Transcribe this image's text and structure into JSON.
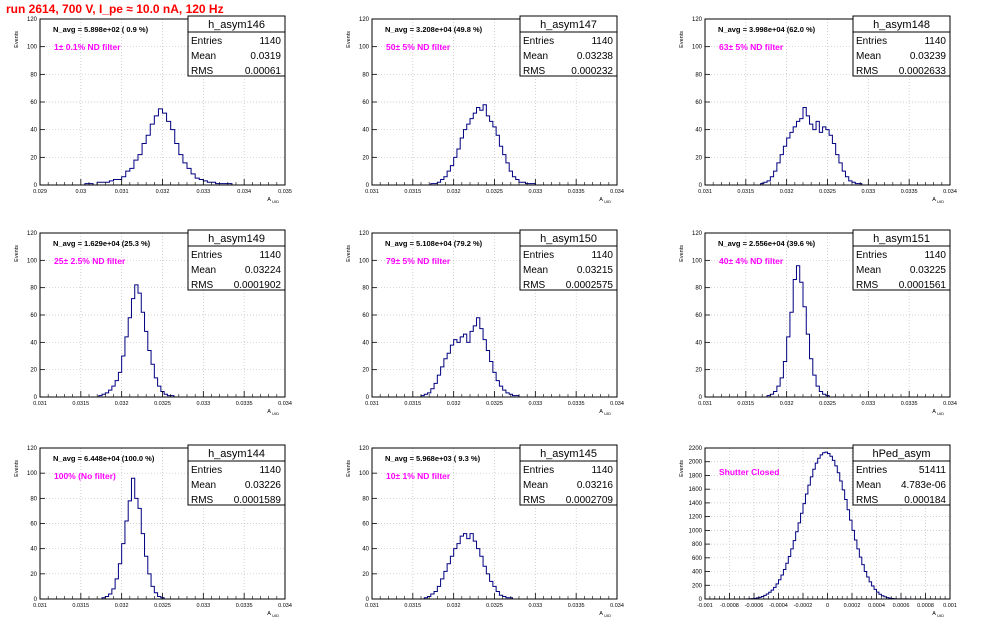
{
  "run_title": "run 2614,   700 V, I_pe ≈ 10.0 nA, 120 Hz",
  "chart_data": [
    {
      "type": "bar",
      "name": "h_asym146",
      "ylabel": "Events",
      "xlabel": "A_UID",
      "xlim": [
        0.029,
        0.035
      ],
      "ylim": [
        0,
        120
      ],
      "xticks": [
        "0.029",
        "0.03",
        "0.031",
        "0.032",
        "0.033",
        "0.034",
        "0.035"
      ],
      "yticks": [
        "0",
        "20",
        "40",
        "60",
        "80",
        "100",
        "120"
      ],
      "stats": {
        "entries": "1140",
        "mean": "0.0319",
        "rms": "0.00061"
      },
      "n_avg": "N_avg = 5.898e+02 ( 0.9 %)",
      "filter": "1± 0.1% ND filter",
      "bins": {
        "x0": 0.0301,
        "width": 0.0001,
        "values": [
          1,
          1,
          0,
          2,
          2,
          2,
          3,
          4,
          4,
          6,
          10,
          12,
          18,
          22,
          30,
          36,
          44,
          50,
          55,
          52,
          46,
          40,
          30,
          22,
          16,
          12,
          8,
          5,
          4,
          3,
          2,
          2,
          1,
          1,
          1,
          1
        ]
      }
    },
    {
      "type": "bar",
      "name": "h_asym147",
      "ylabel": "Events",
      "xlabel": "A_UID",
      "xlim": [
        0.031,
        0.034
      ],
      "ylim": [
        0,
        120
      ],
      "xticks": [
        "0.031",
        "0.0315",
        "0.032",
        "0.0325",
        "0.033",
        "0.0335",
        "0.034"
      ],
      "yticks": [
        "0",
        "20",
        "40",
        "60",
        "80",
        "100",
        "120"
      ],
      "stats": {
        "entries": "1140",
        "mean": "0.03238",
        "rms": "0.000232"
      },
      "n_avg": "N_avg = 3.208e+04 (49.8 %)",
      "filter": "50± 5% ND filter",
      "bins": {
        "x0": 0.03172,
        "width": 4e-05,
        "values": [
          1,
          1,
          2,
          4,
          6,
          10,
          14,
          20,
          26,
          34,
          40,
          44,
          48,
          52,
          56,
          54,
          58,
          50,
          46,
          42,
          36,
          28,
          22,
          16,
          10,
          6,
          4,
          2,
          2,
          1,
          1,
          1
        ]
      }
    },
    {
      "type": "bar",
      "name": "h_asym148",
      "ylabel": "Events",
      "xlabel": "A_UID",
      "xlim": [
        0.031,
        0.034
      ],
      "ylim": [
        0,
        120
      ],
      "xticks": [
        "0.031",
        "0.0315",
        "0.032",
        "0.0325",
        "0.033",
        "0.0335",
        "0.034"
      ],
      "yticks": [
        "0",
        "20",
        "40",
        "60",
        "80",
        "100",
        "120"
      ],
      "stats": {
        "entries": "1140",
        "mean": "0.03239",
        "rms": "0.0002633"
      },
      "n_avg": "N_avg = 3.998e+04 (62.0 %)",
      "filter": "63± 5% ND filter",
      "bins": {
        "x0": 0.03168,
        "width": 4e-05,
        "values": [
          1,
          2,
          3,
          6,
          10,
          16,
          22,
          28,
          34,
          38,
          42,
          46,
          48,
          56,
          50,
          44,
          40,
          46,
          38,
          42,
          40,
          36,
          30,
          22,
          16,
          10,
          6,
          3,
          2,
          1,
          1
        ]
      }
    },
    {
      "type": "bar",
      "name": "h_asym149",
      "ylabel": "Events",
      "xlabel": "A_UID",
      "xlim": [
        0.031,
        0.034
      ],
      "ylim": [
        0,
        120
      ],
      "xticks": [
        "0.031",
        "0.0315",
        "0.032",
        "0.0325",
        "0.033",
        "0.0335",
        "0.034"
      ],
      "yticks": [
        "0",
        "20",
        "40",
        "60",
        "80",
        "100",
        "120"
      ],
      "stats": {
        "entries": "1140",
        "mean": "0.03224",
        "rms": "0.0001902"
      },
      "n_avg": "N_avg = 1.629e+04 (25.3 %)",
      "filter": "25± 2.5% ND filter",
      "bins": {
        "x0": 0.03172,
        "width": 4e-05,
        "values": [
          1,
          2,
          3,
          5,
          8,
          12,
          18,
          30,
          44,
          58,
          72,
          82,
          76,
          62,
          48,
          34,
          24,
          14,
          8,
          4,
          2,
          1,
          1
        ]
      }
    },
    {
      "type": "bar",
      "name": "h_asym150",
      "ylabel": "Events",
      "xlabel": "A_UID",
      "xlim": [
        0.031,
        0.034
      ],
      "ylim": [
        0,
        120
      ],
      "xticks": [
        "0.031",
        "0.0315",
        "0.032",
        "0.0325",
        "0.033",
        "0.0335",
        "0.034"
      ],
      "yticks": [
        "0",
        "20",
        "40",
        "60",
        "80",
        "100",
        "120"
      ],
      "stats": {
        "entries": "1140",
        "mean": "0.03215",
        "rms": "0.0002575"
      },
      "n_avg": "N_avg = 5.108e+04 (79.2 %)",
      "filter": "79± 5% ND filter",
      "bins": {
        "x0": 0.0316,
        "width": 4e-05,
        "values": [
          1,
          2,
          3,
          6,
          10,
          16,
          22,
          28,
          32,
          38,
          42,
          40,
          44,
          46,
          40,
          48,
          52,
          58,
          50,
          42,
          34,
          26,
          18,
          12,
          8,
          5,
          3,
          2,
          1,
          1
        ]
      }
    },
    {
      "type": "bar",
      "name": "h_asym151",
      "ylabel": "Events",
      "xlabel": "A_UID",
      "xlim": [
        0.031,
        0.034
      ],
      "ylim": [
        0,
        120
      ],
      "xticks": [
        "0.031",
        "0.0315",
        "0.032",
        "0.0325",
        "0.033",
        "0.0335",
        "0.034"
      ],
      "yticks": [
        "0",
        "20",
        "40",
        "60",
        "80",
        "100",
        "120"
      ],
      "stats": {
        "entries": "1140",
        "mean": "0.03225",
        "rms": "0.0001561"
      },
      "n_avg": "N_avg = 2.556e+04 (39.6 %)",
      "filter": "40± 4% ND filter",
      "bins": {
        "x0": 0.03176,
        "width": 4e-05,
        "values": [
          1,
          2,
          4,
          8,
          14,
          26,
          44,
          62,
          86,
          96,
          84,
          66,
          46,
          28,
          16,
          8,
          4,
          2,
          1
        ]
      }
    },
    {
      "type": "bar",
      "name": "h_asym144",
      "ylabel": "Events",
      "xlabel": "A_UID",
      "xlim": [
        0.031,
        0.034
      ],
      "ylim": [
        0,
        120
      ],
      "xticks": [
        "0.031",
        "0.0315",
        "0.032",
        "0.0325",
        "0.033",
        "0.0335",
        "0.034"
      ],
      "yticks": [
        "0",
        "20",
        "40",
        "60",
        "80",
        "100",
        "120"
      ],
      "stats": {
        "entries": "1140",
        "mean": "0.03226",
        "rms": "0.0001589"
      },
      "n_avg": "N_avg = 6.448e+04 (100.0 %)",
      "filter": "100% (No filter)",
      "bins": {
        "x0": 0.03176,
        "width": 4e-05,
        "values": [
          1,
          2,
          4,
          8,
          16,
          28,
          44,
          62,
          78,
          96,
          80,
          72,
          52,
          34,
          20,
          10,
          5,
          2,
          1
        ]
      }
    },
    {
      "type": "bar",
      "name": "h_asym145",
      "ylabel": "Events",
      "xlabel": "A_UID",
      "xlim": [
        0.031,
        0.034
      ],
      "ylim": [
        0,
        120
      ],
      "xticks": [
        "0.031",
        "0.0315",
        "0.032",
        "0.0325",
        "0.033",
        "0.0335",
        "0.034"
      ],
      "yticks": [
        "0",
        "20",
        "40",
        "60",
        "80",
        "100",
        "120"
      ],
      "stats": {
        "entries": "1140",
        "mean": "0.03216",
        "rms": "0.0002709"
      },
      "n_avg": "N_avg = 5.968e+03 ( 9.3 %)",
      "filter": "10± 1% ND filter",
      "bins": {
        "x0": 0.03164,
        "width": 4e-05,
        "values": [
          1,
          2,
          4,
          6,
          10,
          16,
          22,
          28,
          34,
          40,
          44,
          50,
          52,
          48,
          52,
          46,
          40,
          34,
          26,
          20,
          14,
          10,
          6,
          3,
          2,
          1,
          1
        ]
      }
    },
    {
      "type": "bar",
      "name": "hPed_asym",
      "ylabel": "Events",
      "xlabel": "A_UID",
      "xlim": [
        -0.001,
        0.001
      ],
      "ylim": [
        0,
        2200
      ],
      "xticks": [
        "-0.001",
        "-0.0008",
        "-0.0006",
        "-0.0004",
        "-0.0002",
        "0",
        "0.0002",
        "0.0004",
        "0.0006",
        "0.0008",
        "0.001"
      ],
      "yticks": [
        "0",
        "200",
        "400",
        "600",
        "800",
        "1000",
        "1200",
        "1400",
        "1600",
        "1800",
        "2000",
        "2200"
      ],
      "stats": {
        "entries": "51411",
        "mean": "4.783e-06",
        "rms": "0.000184"
      },
      "n_avg": "",
      "filter": "Shutter Closed",
      "bins": {
        "x0": -0.00066,
        "width": 2e-05,
        "values": [
          2,
          4,
          6,
          10,
          16,
          24,
          36,
          52,
          72,
          98,
          130,
          170,
          220,
          280,
          350,
          430,
          520,
          620,
          730,
          850,
          980,
          1110,
          1250,
          1390,
          1530,
          1660,
          1780,
          1890,
          1980,
          2050,
          2100,
          2130,
          2140,
          2120,
          2080,
          2020,
          1940,
          1840,
          1720,
          1590,
          1450,
          1300,
          1150,
          1000,
          860,
          730,
          610,
          500,
          400,
          320,
          250,
          190,
          140,
          100,
          70,
          48,
          32,
          20,
          12,
          8,
          4,
          2,
          1,
          1,
          1,
          1
        ]
      }
    }
  ],
  "colors": {
    "title": "#ff0000",
    "filter_label": "#ff00ff",
    "histogram": "#000080",
    "grid": "#c0c0c0",
    "frame": "#000000"
  }
}
